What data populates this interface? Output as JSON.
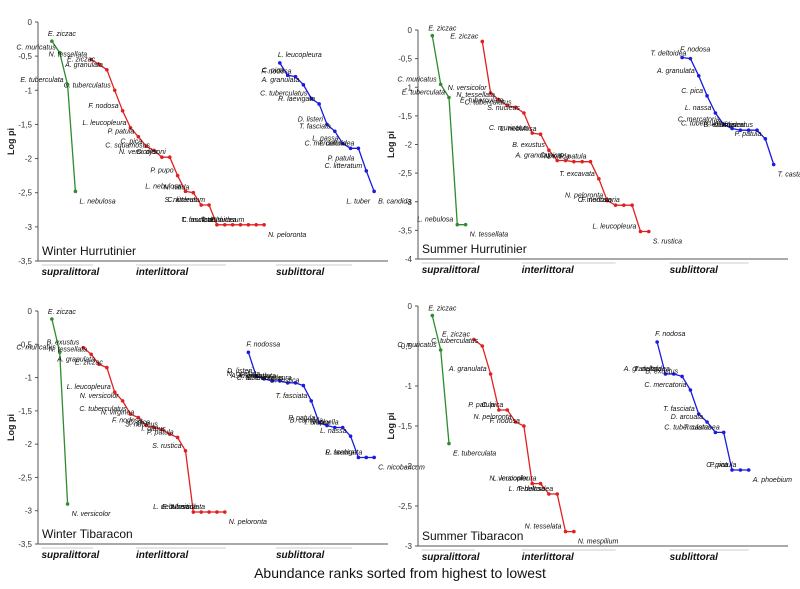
{
  "figure": {
    "footer": "Abundance ranks sorted from highest to lowest",
    "zone_labels": [
      "supralittoral",
      "interlittoral",
      "sublittoral"
    ]
  },
  "colors": {
    "supralittoral": "#2e8b2e",
    "interlittoral": "#e02020",
    "sublittoral": "#1a1ae0",
    "axis": "#555555"
  },
  "chart_data": [
    {
      "type": "line",
      "title": "Winter Hurrutinier",
      "ylabel": "Log pi",
      "ylim": [
        -3.5,
        0
      ],
      "yticks": [
        0,
        -0.5,
        -1,
        -1.5,
        -2,
        -2.5,
        -3,
        -3.5
      ],
      "ytick_labels": [
        "0",
        "-0,5",
        "-1",
        "-1,5",
        "-2",
        "-2,5",
        "-3",
        "-3,5"
      ],
      "xmax": 43,
      "series": [
        {
          "name": "supralittoral",
          "zone": "supralittoral",
          "x": [
            1,
            2,
            3,
            4
          ],
          "y": [
            -0.28,
            -0.45,
            -0.92,
            -2.48
          ],
          "labels": [
            "E. ziczac",
            "C. muricatus",
            "E. tuberculata",
            "L. nebulosa"
          ]
        },
        {
          "name": "interlittoral",
          "zone": "interlittoral",
          "x": [
            6,
            7,
            8,
            9,
            10,
            11,
            12,
            13,
            14,
            15,
            16,
            17,
            18,
            19,
            20,
            21,
            22,
            23,
            24,
            25,
            26,
            27,
            28
          ],
          "y": [
            -0.55,
            -0.62,
            -0.7,
            -1.0,
            -1.3,
            -1.55,
            -1.68,
            -1.82,
            -1.88,
            -1.98,
            -1.98,
            -2.25,
            -2.48,
            -2.5,
            -2.68,
            -2.68,
            -2.97,
            -2.97,
            -2.97,
            -2.97,
            -2.97,
            -2.97,
            -2.97
          ],
          "labels": [
            "N. tessellata",
            "E. ziczac",
            "A. granulata",
            "C. tuberculatus",
            "F. nodosa",
            "L. leucopleura",
            "P. patula",
            "C. pica",
            "C. squamosus",
            "N. versicolor",
            "D. dysoni",
            "P. pupo",
            "L. nebulosa",
            "N. nitida",
            "S. nucleus",
            "C. litteratum",
            "T. fasciata",
            "C. muricatus",
            "",
            "T. deltoidea",
            "C. lutosum",
            "",
            "N. peloronta"
          ]
        },
        {
          "name": "sublittoral",
          "zone": "sublittoral",
          "x": [
            30,
            31,
            32,
            33,
            34,
            35,
            36,
            37,
            38,
            39,
            40,
            41,
            42
          ],
          "y": [
            -0.6,
            -0.78,
            -0.8,
            -0.92,
            -1.12,
            -1.2,
            -1.5,
            -1.6,
            -1.78,
            -1.85,
            -1.85,
            -2.18,
            -2.48
          ],
          "labels": [
            "L. leucopleura",
            "C. pica",
            "F. nodosa",
            "A. granulata",
            "C. tuberculatus",
            "R. laevigata",
            "D. listeri",
            "T. fasciata",
            "L. nassa",
            "C. mercatoria",
            "T. deltoidea",
            "C. litteratum",
            "B. candida"
          ]
        }
      ],
      "extra_labels": [
        "P. patula",
        "L. tuber"
      ]
    },
    {
      "type": "line",
      "title": "Summer Hurrutinier",
      "ylabel": "Log pi",
      "ylim": [
        -4,
        0
      ],
      "yticks": [
        0,
        -0.5,
        -1,
        -1.5,
        -2,
        -2.5,
        -3,
        -3.5,
        -4
      ],
      "ytick_labels": [
        "0",
        "-0,5",
        "-1",
        "-1,5",
        "-2",
        "-2,5",
        "-3",
        "-3,5",
        "-4"
      ],
      "xmax": 43,
      "series": [
        {
          "name": "supralittoral",
          "zone": "supralittoral",
          "x": [
            1,
            2,
            3,
            4,
            5
          ],
          "y": [
            -0.1,
            -0.95,
            -1.18,
            -3.4,
            -3.4
          ],
          "labels": [
            "E. ziczac",
            "C. muricatus",
            "E. tuberculata",
            "L. nebulosa",
            "N. tessellata"
          ]
        },
        {
          "name": "interlittoral",
          "zone": "interlittoral",
          "x": [
            7,
            8,
            9,
            10,
            11,
            12,
            13,
            14,
            15,
            16,
            17,
            18,
            19,
            20,
            21,
            22,
            23,
            24,
            25,
            26,
            27
          ],
          "y": [
            -0.2,
            -1.1,
            -1.22,
            -1.32,
            -1.35,
            -1.45,
            -1.8,
            -1.82,
            -2.1,
            -2.28,
            -2.28,
            -2.3,
            -2.3,
            -2.3,
            -2.6,
            -2.98,
            -3.06,
            -3.06,
            -3.06,
            -3.52,
            -3.52
          ],
          "labels": [
            "E. ziczac",
            "N. versicolor",
            "N. tessellata",
            "E. tuberculata",
            "C. tuberculatus",
            "S. nucleus",
            "C. muricatus",
            "L. nebulosa",
            "B. exustus",
            "A. granulata",
            "C. pica",
            "N. nitida",
            "",
            "P. patula",
            "T. excavata",
            "N. peloronta",
            "F. nodosa",
            "C. mercatoria",
            "",
            "L. leucopleura",
            "S. rustica"
          ]
        },
        {
          "name": "sublittoral",
          "zone": "sublittoral",
          "x": [
            31,
            32,
            33,
            34,
            35,
            36,
            37,
            38,
            39,
            40,
            41,
            42
          ],
          "y": [
            -0.48,
            -0.5,
            -0.8,
            -1.15,
            -1.45,
            -1.65,
            -1.72,
            -1.75,
            -1.75,
            -1.75,
            -1.9,
            -2.35
          ],
          "labels": [
            "F. nodosa",
            "T. deltoidea",
            "A. granulata",
            "C. pica",
            "L. nassa",
            "C. mercatoria",
            "C. tuberculatus",
            "B. exustus",
            "D. listeri",
            "C. muricatus",
            "P. patula",
            "T. castanea"
          ]
        }
      ]
    },
    {
      "type": "line",
      "title": "Winter Tibaracon",
      "ylabel": "Log pi",
      "ylim": [
        -3.5,
        0
      ],
      "yticks": [
        0,
        -0.5,
        -1,
        -1.5,
        -2,
        -2.5,
        -3,
        -3.5
      ],
      "ytick_labels": [
        "0",
        "-0,5",
        "-1",
        "-1,5",
        "-2",
        "-2,5",
        "-3",
        "-3,5"
      ],
      "xmax": 43,
      "series": [
        {
          "name": "supralittoral",
          "zone": "supralittoral",
          "x": [
            1,
            2,
            3
          ],
          "y": [
            -0.12,
            -0.62,
            -2.9
          ],
          "labels": [
            "E. ziczac",
            "C. muricatus",
            "N. versicolor"
          ]
        },
        {
          "name": "interlittoral",
          "zone": "interlittoral",
          "x": [
            5,
            6,
            7,
            8,
            9,
            10,
            11,
            12,
            13,
            14,
            15,
            16,
            17,
            18,
            19,
            20,
            21,
            22,
            23
          ],
          "y": [
            -0.55,
            -0.65,
            -0.8,
            -0.85,
            -1.22,
            -1.35,
            -1.55,
            -1.6,
            -1.72,
            -1.75,
            -1.78,
            -1.85,
            -1.9,
            -2.1,
            -3.02,
            -3.02,
            -3.02,
            -3.02,
            -3.02
          ],
          "labels": [
            "B. exustus",
            "N. tessellata",
            "A. granulata",
            "E. ziczac",
            "L. leucopleura",
            "N. versicolor",
            "C. tuberculatus",
            "N. virginea",
            "F. nodosa",
            "C. pica",
            "S. nucleus",
            "I. olatus",
            "P. patula",
            "S. rustica",
            "L. nebulosa",
            "N. nitida",
            "E. tuberculata",
            "",
            "N. peloronta"
          ]
        },
        {
          "name": "sublittoral",
          "zone": "sublittoral",
          "x": [
            26,
            27,
            28,
            29,
            30,
            31,
            32,
            33,
            34,
            35,
            36,
            37,
            38,
            39,
            40,
            41,
            42
          ],
          "y": [
            -0.62,
            -0.98,
            -1.02,
            -1.05,
            -1.05,
            -1.08,
            -1.08,
            -1.12,
            -1.35,
            -1.68,
            -1.72,
            -1.75,
            -1.75,
            -1.88,
            -2.2,
            -2.2,
            -2.2
          ],
          "labels": [
            "F. nodossa",
            "D. listeri",
            "N. ocellata",
            "A. imbricata",
            "A. granulata",
            "C. tuberculatus",
            "L. leucopleura",
            "S. rustica",
            "T. fasciata",
            "P. patula",
            "B. candida",
            "I. bicolor",
            "V. puella",
            "L. nassa",
            "L. scabra",
            "R. laevigata",
            "C. nicobaricum"
          ]
        }
      ]
    },
    {
      "type": "line",
      "title": "Summer Tibaracon",
      "ylabel": "Log pi",
      "ylim": [
        -3,
        0
      ],
      "yticks": [
        0,
        -0.5,
        -1,
        -1.5,
        -2,
        -2.5,
        -3
      ],
      "ytick_labels": [
        "0",
        "-0,5",
        "-1",
        "-1,5",
        "-2",
        "-2,5",
        "-3"
      ],
      "xmax": 43,
      "series": [
        {
          "name": "supralittoral",
          "zone": "supralittoral",
          "x": [
            1,
            2,
            3
          ],
          "y": [
            -0.12,
            -0.55,
            -1.72
          ],
          "labels": [
            "E. ziczac",
            "C. muricatus",
            "E. tuberculata"
          ]
        },
        {
          "name": "interlittoral",
          "zone": "interlittoral",
          "x": [
            6,
            7,
            8,
            9,
            10,
            11,
            12,
            13,
            14,
            15,
            16,
            17,
            18
          ],
          "y": [
            -0.42,
            -0.5,
            -0.85,
            -1.3,
            -1.3,
            -1.45,
            -1.5,
            -2.22,
            -2.22,
            -2.35,
            -2.35,
            -2.82,
            -2.82
          ],
          "labels": [
            "E. ziczac",
            "C. tuberculatus",
            "A. granulata",
            "P. patula",
            "C. pica",
            "N. peloronta",
            "F. nodosa",
            "N. versicolor",
            "L. leucopleura",
            "L. nebulosa",
            "T. deltoidea",
            "N. tesselata",
            "N. mespilium"
          ]
        },
        {
          "name": "sublittoral",
          "zone": "sublittoral",
          "x": [
            28,
            29,
            30,
            31,
            32,
            33,
            34,
            35,
            36,
            37,
            38,
            39
          ],
          "y": [
            -0.45,
            -0.85,
            -0.85,
            -0.88,
            -1.05,
            -1.35,
            -1.45,
            -1.58,
            -1.58,
            -2.05,
            -2.05,
            -2.05
          ],
          "labels": [
            "F. nodosa",
            "A. granulata",
            "T. deltoidea",
            "B. exustus",
            "C. mercatoria",
            "T. fasciata",
            "D. arcuata",
            "C. tuberculatus",
            "T. castanea",
            "C. pica",
            "P. patula",
            "A. phoebium"
          ]
        }
      ]
    }
  ]
}
